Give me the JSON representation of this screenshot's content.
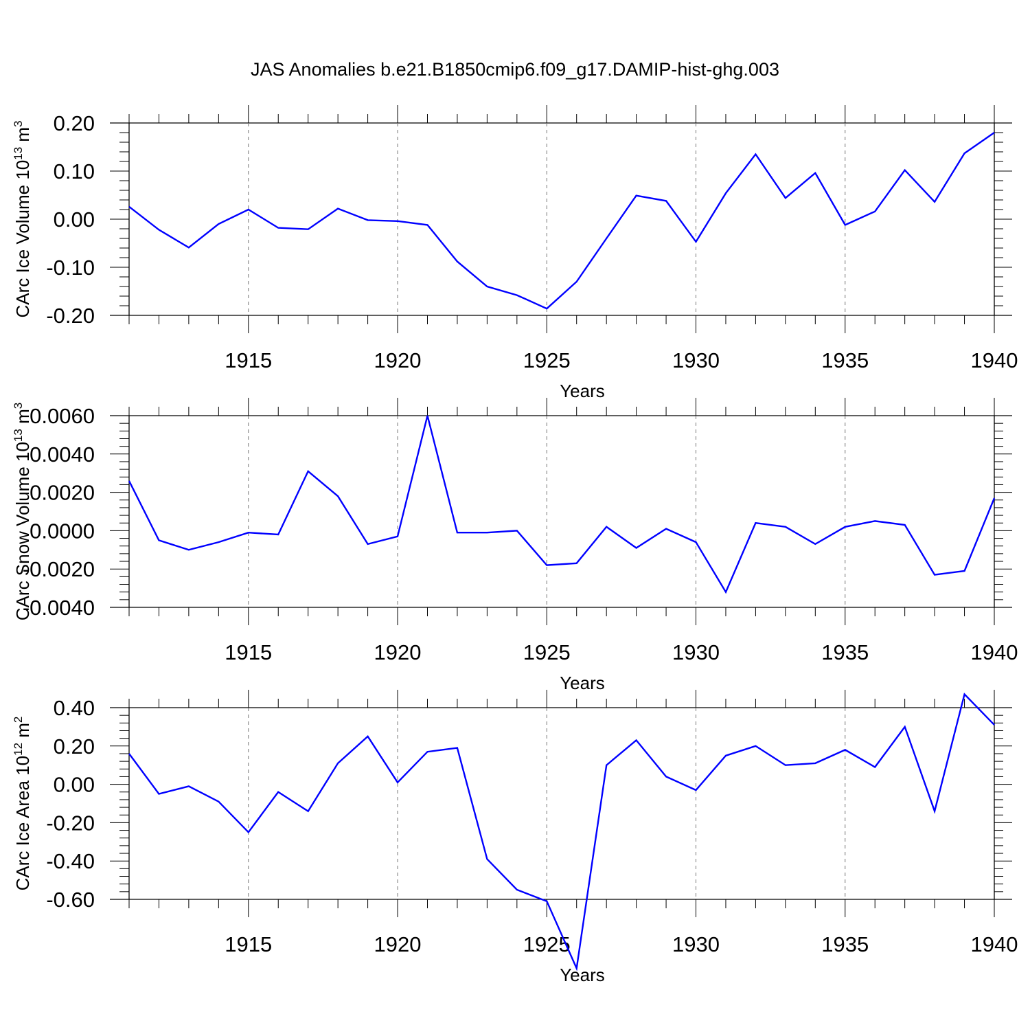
{
  "figure": {
    "title": "JAS Anomalies b.e21.B1850cmip6.f09_g17.DAMIP-hist-ghg.003",
    "line_color": "#0000ff"
  },
  "chart_data": [
    {
      "type": "line",
      "title": "",
      "ylabel_text": "CArc Ice Volume 10",
      "ylabel_exp": "13",
      "ylabel_unit": " m",
      "ylabel_unit_exp": "3",
      "xlabel": "Years",
      "xlim": [
        1911,
        1940
      ],
      "ylim": [
        -0.2,
        0.2
      ],
      "yticks": [
        -0.2,
        -0.1,
        0.0,
        0.1,
        0.2
      ],
      "ytick_labels": [
        "-0.20",
        "-0.10",
        "0.00",
        "0.10",
        "0.20"
      ],
      "xticks": [
        1915,
        1920,
        1925,
        1930,
        1935,
        1940
      ],
      "xtick_labels": [
        "1915",
        "1920",
        "1925",
        "1930",
        "1935",
        "1940"
      ],
      "grid": "x-dashed",
      "series": [
        {
          "x": [
            1911,
            1912,
            1913,
            1914,
            1915,
            1916,
            1917,
            1918,
            1919,
            1920,
            1921,
            1922,
            1923,
            1924,
            1925,
            1926,
            1927,
            1928,
            1929,
            1930,
            1931,
            1932,
            1933,
            1934,
            1935,
            1936,
            1937,
            1938,
            1939,
            1940
          ],
          "values": [
            0.026,
            -0.022,
            -0.059,
            -0.01,
            0.02,
            -0.018,
            -0.021,
            0.022,
            -0.002,
            -0.004,
            -0.012,
            -0.088,
            -0.14,
            -0.158,
            -0.186,
            -0.13,
            -0.04,
            0.049,
            0.038,
            -0.047,
            0.054,
            0.135,
            0.044,
            0.096,
            -0.012,
            0.016,
            0.102,
            0.036,
            0.137,
            0.18
          ]
        }
      ]
    },
    {
      "type": "line",
      "title": "",
      "ylabel_text": "CArc Snow Volume 10",
      "ylabel_exp": "13",
      "ylabel_unit": " m",
      "ylabel_unit_exp": "3",
      "xlabel": "Years",
      "xlim": [
        1911,
        1940
      ],
      "ylim": [
        -0.004,
        0.006
      ],
      "yticks": [
        -0.004,
        -0.002,
        0.0,
        0.002,
        0.004,
        0.006
      ],
      "ytick_labels": [
        "-0.0040",
        "-0.0020",
        "0.0000",
        "0.0020",
        "0.0040",
        "0.0060"
      ],
      "xticks": [
        1915,
        1920,
        1925,
        1930,
        1935,
        1940
      ],
      "xtick_labels": [
        "1915",
        "1920",
        "1925",
        "1930",
        "1935",
        "1940"
      ],
      "grid": "x-dashed",
      "series": [
        {
          "x": [
            1911,
            1912,
            1913,
            1914,
            1915,
            1916,
            1917,
            1918,
            1919,
            1920,
            1921,
            1922,
            1923,
            1924,
            1925,
            1926,
            1927,
            1928,
            1929,
            1930,
            1931,
            1932,
            1933,
            1934,
            1935,
            1936,
            1937,
            1938,
            1939,
            1940
          ],
          "values": [
            0.0026,
            -0.0005,
            -0.001,
            -0.0006,
            -0.0001,
            -0.0002,
            0.0031,
            0.0018,
            -0.0007,
            -0.0003,
            0.006,
            -0.0001,
            -0.0001,
            0.0,
            -0.0018,
            -0.0017,
            0.0002,
            -0.0009,
            0.0001,
            -0.0006,
            -0.0032,
            0.0004,
            0.0002,
            -0.0007,
            0.0002,
            0.0005,
            0.0003,
            -0.0023,
            -0.0021,
            0.0017
          ]
        }
      ]
    },
    {
      "type": "line",
      "title": "",
      "ylabel_text": "CArc Ice Area 10",
      "ylabel_exp": "12",
      "ylabel_unit": " m",
      "ylabel_unit_exp": "2",
      "xlabel": "Years",
      "xlim": [
        1911,
        1940
      ],
      "ylim": [
        -0.6,
        0.4
      ],
      "yticks": [
        -0.6,
        -0.4,
        -0.2,
        0.0,
        0.2,
        0.4
      ],
      "ytick_labels": [
        "-0.60",
        "-0.40",
        "-0.20",
        "0.00",
        "0.20",
        "0.40"
      ],
      "xticks": [
        1915,
        1920,
        1925,
        1930,
        1935,
        1940
      ],
      "xtick_labels": [
        "1915",
        "1920",
        "1925",
        "1930",
        "1935",
        "1940"
      ],
      "grid": "x-dashed",
      "series": [
        {
          "x": [
            1911,
            1912,
            1913,
            1914,
            1915,
            1916,
            1917,
            1918,
            1919,
            1920,
            1921,
            1922,
            1923,
            1924,
            1925,
            1926,
            1927,
            1928,
            1929,
            1930,
            1931,
            1932,
            1933,
            1934,
            1935,
            1936,
            1937,
            1938,
            1939,
            1940
          ],
          "values": [
            0.16,
            -0.05,
            -0.01,
            -0.09,
            -0.25,
            -0.04,
            -0.14,
            0.11,
            0.25,
            0.01,
            0.17,
            0.19,
            -0.39,
            -0.55,
            -0.61,
            -0.96,
            0.1,
            0.23,
            0.04,
            -0.03,
            0.15,
            0.2,
            0.1,
            0.11,
            0.18,
            0.09,
            0.3,
            -0.14,
            0.47,
            0.31
          ]
        }
      ]
    }
  ]
}
